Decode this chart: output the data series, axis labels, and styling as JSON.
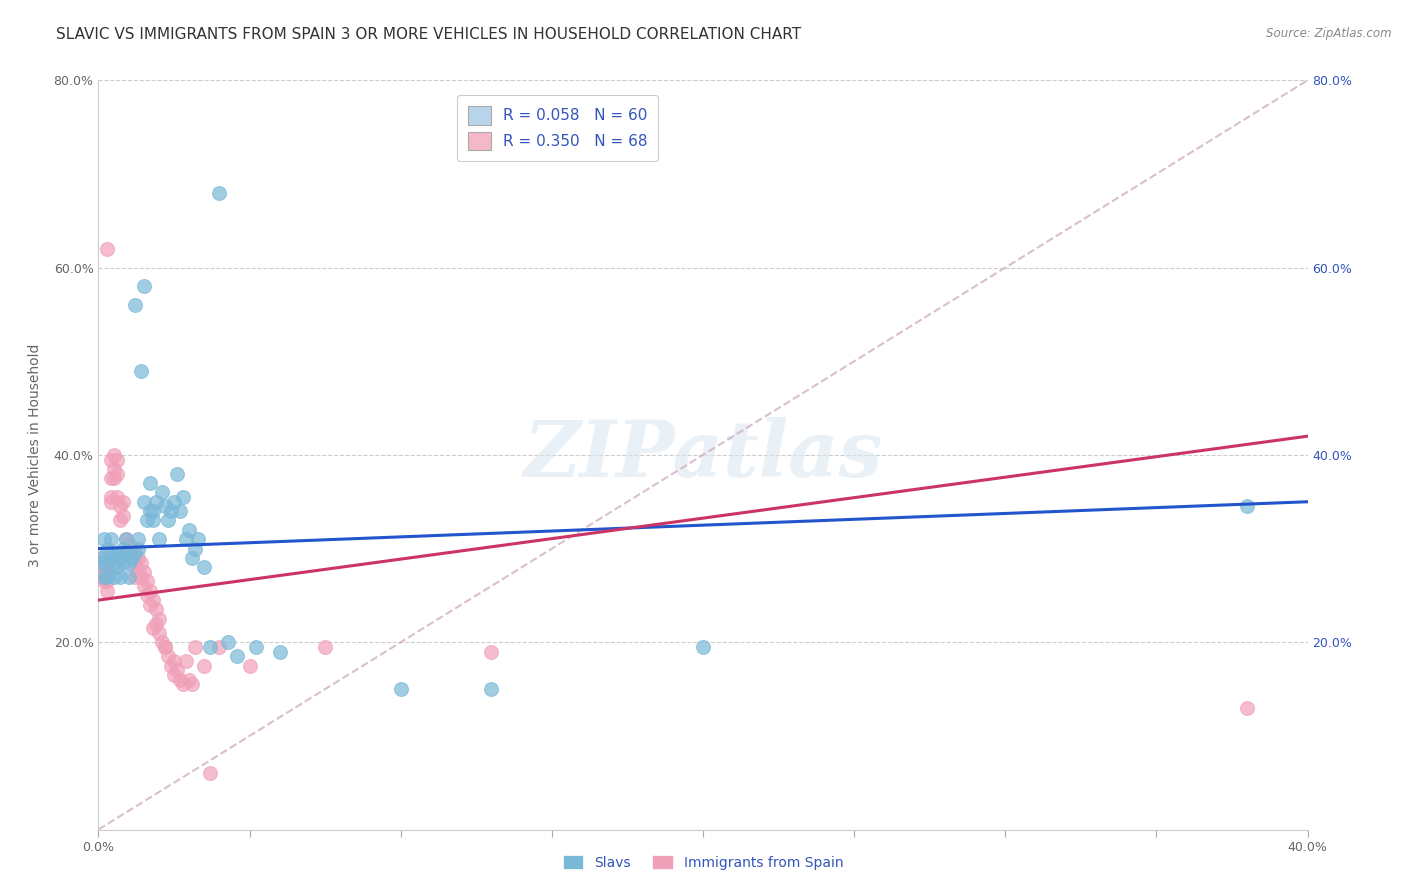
{
  "title": "SLAVIC VS IMMIGRANTS FROM SPAIN 3 OR MORE VEHICLES IN HOUSEHOLD CORRELATION CHART",
  "source": "Source: ZipAtlas.com",
  "ylabel": "3 or more Vehicles in Household",
  "x_min": 0.0,
  "x_max": 0.4,
  "y_min": 0.0,
  "y_max": 0.8,
  "y_ticks": [
    0.0,
    0.2,
    0.4,
    0.6,
    0.8
  ],
  "y_tick_labels_left": [
    "",
    "20.0%",
    "40.0%",
    "60.0%",
    "80.0%"
  ],
  "y_tick_labels_right": [
    "",
    "20.0%",
    "40.0%",
    "60.0%",
    "80.0%"
  ],
  "legend_entries": [
    {
      "label": "R = 0.058   N = 60",
      "color": "#b8d4ea"
    },
    {
      "label": "R = 0.350   N = 68",
      "color": "#f4b8c8"
    }
  ],
  "legend_labels_bottom": [
    "Slavs",
    "Immigrants from Spain"
  ],
  "slavs_color": "#7ab8d8",
  "spain_color": "#f0a0b8",
  "slavs_line_color": "#2255cc",
  "spain_line_color": "#cc3366",
  "dashed_line_color": "#d0b0c0",
  "background_color": "#ffffff",
  "grid_color": "#cccccc",
  "title_fontsize": 11,
  "axis_label_fontsize": 10,
  "tick_fontsize": 9,
  "legend_fontsize": 11,
  "watermark_text": "ZIPatlas",
  "slavs_scatter": [
    [
      0.001,
      0.29
    ],
    [
      0.001,
      0.285
    ],
    [
      0.002,
      0.31
    ],
    [
      0.002,
      0.27
    ],
    [
      0.003,
      0.3
    ],
    [
      0.003,
      0.27
    ],
    [
      0.003,
      0.285
    ],
    [
      0.004,
      0.295
    ],
    [
      0.004,
      0.31
    ],
    [
      0.005,
      0.285
    ],
    [
      0.005,
      0.27
    ],
    [
      0.006,
      0.295
    ],
    [
      0.006,
      0.28
    ],
    [
      0.007,
      0.29
    ],
    [
      0.007,
      0.27
    ],
    [
      0.008,
      0.3
    ],
    [
      0.008,
      0.285
    ],
    [
      0.009,
      0.31
    ],
    [
      0.009,
      0.295
    ],
    [
      0.01,
      0.285
    ],
    [
      0.01,
      0.27
    ],
    [
      0.011,
      0.29
    ],
    [
      0.012,
      0.56
    ],
    [
      0.012,
      0.295
    ],
    [
      0.013,
      0.31
    ],
    [
      0.013,
      0.3
    ],
    [
      0.014,
      0.49
    ],
    [
      0.015,
      0.58
    ],
    [
      0.015,
      0.35
    ],
    [
      0.016,
      0.33
    ],
    [
      0.017,
      0.34
    ],
    [
      0.017,
      0.37
    ],
    [
      0.018,
      0.34
    ],
    [
      0.018,
      0.33
    ],
    [
      0.019,
      0.35
    ],
    [
      0.02,
      0.31
    ],
    [
      0.021,
      0.36
    ],
    [
      0.022,
      0.345
    ],
    [
      0.023,
      0.33
    ],
    [
      0.024,
      0.34
    ],
    [
      0.025,
      0.35
    ],
    [
      0.026,
      0.38
    ],
    [
      0.027,
      0.34
    ],
    [
      0.028,
      0.355
    ],
    [
      0.029,
      0.31
    ],
    [
      0.03,
      0.32
    ],
    [
      0.031,
      0.29
    ],
    [
      0.032,
      0.3
    ],
    [
      0.033,
      0.31
    ],
    [
      0.035,
      0.28
    ],
    [
      0.037,
      0.195
    ],
    [
      0.04,
      0.68
    ],
    [
      0.043,
      0.2
    ],
    [
      0.046,
      0.185
    ],
    [
      0.052,
      0.195
    ],
    [
      0.06,
      0.19
    ],
    [
      0.1,
      0.15
    ],
    [
      0.13,
      0.15
    ],
    [
      0.2,
      0.195
    ],
    [
      0.38,
      0.345
    ]
  ],
  "spain_scatter": [
    [
      0.001,
      0.285
    ],
    [
      0.001,
      0.27
    ],
    [
      0.002,
      0.29
    ],
    [
      0.002,
      0.275
    ],
    [
      0.002,
      0.265
    ],
    [
      0.003,
      0.62
    ],
    [
      0.003,
      0.285
    ],
    [
      0.003,
      0.275
    ],
    [
      0.003,
      0.265
    ],
    [
      0.003,
      0.255
    ],
    [
      0.004,
      0.395
    ],
    [
      0.004,
      0.375
    ],
    [
      0.004,
      0.355
    ],
    [
      0.004,
      0.35
    ],
    [
      0.005,
      0.4
    ],
    [
      0.005,
      0.385
    ],
    [
      0.005,
      0.375
    ],
    [
      0.006,
      0.395
    ],
    [
      0.006,
      0.38
    ],
    [
      0.006,
      0.355
    ],
    [
      0.007,
      0.345
    ],
    [
      0.007,
      0.33
    ],
    [
      0.008,
      0.35
    ],
    [
      0.008,
      0.335
    ],
    [
      0.009,
      0.31
    ],
    [
      0.009,
      0.295
    ],
    [
      0.01,
      0.305
    ],
    [
      0.01,
      0.295
    ],
    [
      0.011,
      0.295
    ],
    [
      0.012,
      0.285
    ],
    [
      0.012,
      0.27
    ],
    [
      0.013,
      0.29
    ],
    [
      0.013,
      0.275
    ],
    [
      0.014,
      0.285
    ],
    [
      0.014,
      0.27
    ],
    [
      0.015,
      0.275
    ],
    [
      0.015,
      0.26
    ],
    [
      0.016,
      0.265
    ],
    [
      0.016,
      0.25
    ],
    [
      0.017,
      0.255
    ],
    [
      0.017,
      0.24
    ],
    [
      0.018,
      0.245
    ],
    [
      0.018,
      0.215
    ],
    [
      0.019,
      0.235
    ],
    [
      0.019,
      0.22
    ],
    [
      0.02,
      0.225
    ],
    [
      0.02,
      0.21
    ],
    [
      0.021,
      0.2
    ],
    [
      0.022,
      0.195
    ],
    [
      0.022,
      0.195
    ],
    [
      0.023,
      0.185
    ],
    [
      0.024,
      0.175
    ],
    [
      0.025,
      0.18
    ],
    [
      0.025,
      0.165
    ],
    [
      0.026,
      0.17
    ],
    [
      0.027,
      0.16
    ],
    [
      0.028,
      0.155
    ],
    [
      0.029,
      0.18
    ],
    [
      0.03,
      0.16
    ],
    [
      0.031,
      0.155
    ],
    [
      0.032,
      0.195
    ],
    [
      0.035,
      0.175
    ],
    [
      0.037,
      0.06
    ],
    [
      0.04,
      0.195
    ],
    [
      0.05,
      0.175
    ],
    [
      0.075,
      0.195
    ],
    [
      0.13,
      0.19
    ],
    [
      0.38,
      0.13
    ]
  ]
}
